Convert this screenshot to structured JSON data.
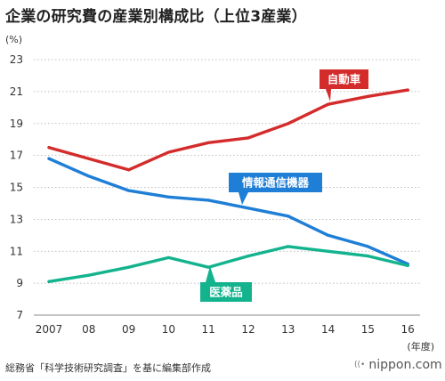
{
  "title": "企業の研究費の産業別構成比（上位3産業）",
  "source": "総務省「科学技術研究調査」を基に編集部作成",
  "brand": {
    "name": "nippon.com",
    "mark_icon": "radio-waves-icon"
  },
  "chart_data": {
    "type": "line",
    "categories": [
      "2007",
      "08",
      "09",
      "10",
      "11",
      "12",
      "13",
      "14",
      "15",
      "16"
    ],
    "ylabel": "(%)",
    "xlabel": "(年度)",
    "ylim": [
      7,
      23
    ],
    "yticks": [
      7,
      9,
      11,
      13,
      15,
      17,
      19,
      21,
      23
    ],
    "grid": "horizontal-dotted",
    "legend": "inline-callouts",
    "series": [
      {
        "name": "自動車",
        "color": "#d42b2b",
        "values": [
          17.5,
          16.8,
          16.1,
          17.2,
          17.8,
          18.1,
          19.0,
          20.2,
          20.7,
          21.1
        ]
      },
      {
        "name": "情報通信機器",
        "color": "#1f7ed6",
        "values": [
          16.8,
          15.7,
          14.8,
          14.4,
          14.2,
          13.7,
          13.2,
          12.0,
          11.3,
          10.2
        ]
      },
      {
        "name": "医薬品",
        "color": "#13b38e",
        "values": [
          9.1,
          9.5,
          10.0,
          10.6,
          10.0,
          10.7,
          11.3,
          11.0,
          10.7,
          10.1
        ]
      }
    ]
  }
}
